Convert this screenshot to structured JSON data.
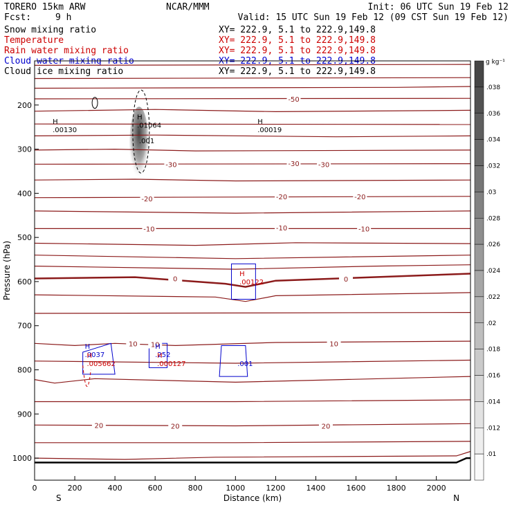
{
  "header": {
    "model": "TORERO  15km ARW",
    "center": "NCAR/MMM",
    "init": "Init: 06 UTC Sun 19 Feb 12",
    "fcst_label": "Fcst:",
    "fcst_value": "9 h",
    "valid": "Valid: 15 UTC Sun 19 Feb 12 (09 CST Sun 19 Feb 12)"
  },
  "fields": [
    {
      "name": "Snow mixing ratio",
      "xy": "XY= 222.9,  5.1 to 222.9,149.8",
      "color": "#000000"
    },
    {
      "name": "Temperature",
      "xy": "XY= 222.9,  5.1 to 222.9,149.8",
      "color": "#cc0000"
    },
    {
      "name": "Rain water mixing ratio",
      "xy": "XY= 222.9,  5.1 to 222.9,149.8",
      "color": "#cc0000"
    },
    {
      "name": "Cloud water mixing ratio",
      "xy": "XY= 222.9,  5.1 to 222.9,149.8",
      "color": "#0000cc"
    },
    {
      "name": "Cloud ice mixing ratio",
      "xy": "XY= 222.9,  5.1 to 222.9,149.8",
      "color": "#000000"
    }
  ],
  "colorbar": {
    "unit": "g kg⁻¹",
    "labels": [
      ".038",
      ".036",
      ".034",
      ".032",
      ".03",
      ".028",
      ".026",
      ".024",
      ".022",
      ".02",
      ".018",
      ".016",
      ".014",
      ".012",
      ".01"
    ]
  },
  "chart_data": {
    "type": "contour",
    "xlabel": "Distance (km)",
    "ylabel": "Pressure (hPa)",
    "xlim": [
      0,
      2170
    ],
    "ylim": [
      1050,
      100
    ],
    "x_ticks": [
      0,
      200,
      400,
      600,
      800,
      1000,
      1200,
      1400,
      1600,
      1800,
      2000
    ],
    "y_ticks": [
      200,
      300,
      400,
      500,
      600,
      700,
      800,
      900,
      1000
    ],
    "endpoints": {
      "left": "S",
      "right": "N"
    },
    "temperature_contours": [
      {
        "value": -50,
        "label": "-50",
        "x": 1290,
        "y": 186
      },
      {
        "value": -30,
        "label": "-30",
        "x": 680,
        "y": 334
      },
      {
        "value": -30,
        "label": "-30",
        "x": 1290,
        "y": 332
      },
      {
        "value": -30,
        "label": "-30",
        "x": 1440,
        "y": 334
      },
      {
        "value": -20,
        "label": "-20",
        "x": 560,
        "y": 412
      },
      {
        "value": -20,
        "label": "-20",
        "x": 1230,
        "y": 407
      },
      {
        "value": -20,
        "label": "-20",
        "x": 1620,
        "y": 407
      },
      {
        "value": -10,
        "label": "-10",
        "x": 570,
        "y": 480
      },
      {
        "value": -10,
        "label": "-10",
        "x": 1230,
        "y": 478
      },
      {
        "value": -10,
        "label": "-10",
        "x": 1640,
        "y": 480
      },
      {
        "value": 0,
        "label": "0",
        "x": 700,
        "y": 593
      },
      {
        "value": 0,
        "label": "0",
        "x": 1550,
        "y": 594
      },
      {
        "value": 10,
        "label": "10",
        "x": 490,
        "y": 740
      },
      {
        "value": 10,
        "label": "10",
        "x": 600,
        "y": 742
      },
      {
        "value": 10,
        "label": "10",
        "x": 1490,
        "y": 740
      },
      {
        "value": 20,
        "label": "20",
        "x": 320,
        "y": 925
      },
      {
        "value": 20,
        "label": "20",
        "x": 700,
        "y": 927
      },
      {
        "value": 20,
        "label": "20",
        "x": 1450,
        "y": 927
      }
    ],
    "maxima": [
      {
        "marker": "H",
        "value": ".00130",
        "x": 90,
        "y": 255,
        "color": "#000000"
      },
      {
        "marker": "H",
        "value": ".01064",
        "x": 510,
        "y": 245,
        "color": "#000000"
      },
      {
        "marker": "H",
        "value": ".00019",
        "x": 1110,
        "y": 255,
        "color": "#000000"
      },
      {
        "marker": "H",
        "value": ".00122",
        "x": 1020,
        "y": 600,
        "color": "#cc0000"
      },
      {
        "marker": "H",
        "value": ".0037",
        "x": 250,
        "y": 765,
        "color": "#0000cc"
      },
      {
        "marker": "H",
        "value": ".005662",
        "x": 260,
        "y": 785,
        "color": "#cc0000"
      },
      {
        "marker": "H",
        "value": ".252",
        "x": 600,
        "y": 765,
        "color": "#0000cc"
      },
      {
        "marker": "H",
        "value": ".000127",
        "x": 610,
        "y": 785,
        "color": "#cc0000"
      }
    ],
    "contour_labels": [
      {
        "text": ".001",
        "x": 520,
        "y": 280,
        "color": "#000000"
      },
      {
        "text": ".001",
        "x": 1010,
        "y": 785,
        "color": "#0000cc"
      }
    ]
  }
}
